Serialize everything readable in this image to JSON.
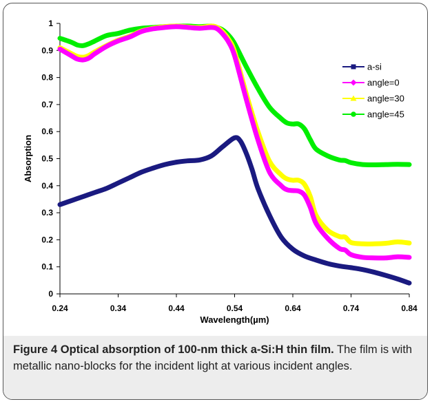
{
  "figure": {
    "caption_title": "Figure 4 Optical absorption of 100-nm thick a-Si:H thin film.",
    "caption_text": " The film is with metallic nano-blocks for the incident light at various incident angles."
  },
  "chart_data": {
    "type": "line",
    "title": "",
    "xlabel": "Wavelength(µm)",
    "ylabel": "Absorption",
    "xlim": [
      0.24,
      0.84
    ],
    "ylim": [
      0,
      1
    ],
    "xticks": [
      "0.24",
      "0.34",
      "0.44",
      "0.54",
      "0.64",
      "0.74",
      "0.84"
    ],
    "yticks": [
      "0",
      "0.1",
      "0.2",
      "0.3",
      "0.4",
      "0.5",
      "0.6",
      "0.7",
      "0.8",
      "0.9",
      "1"
    ],
    "grid": false,
    "legend": "top-right",
    "series": [
      {
        "name": "a-si",
        "color": "#1a1a80",
        "marker": "square",
        "x": [
          0.24,
          0.26,
          0.28,
          0.3,
          0.32,
          0.34,
          0.36,
          0.38,
          0.4,
          0.42,
          0.44,
          0.46,
          0.48,
          0.5,
          0.52,
          0.54,
          0.55,
          0.56,
          0.57,
          0.58,
          0.6,
          0.62,
          0.64,
          0.66,
          0.68,
          0.7,
          0.72,
          0.74,
          0.76,
          0.78,
          0.8,
          0.82,
          0.84
        ],
        "y": [
          0.33,
          0.345,
          0.36,
          0.375,
          0.39,
          0.41,
          0.43,
          0.45,
          0.465,
          0.478,
          0.487,
          0.492,
          0.495,
          0.51,
          0.545,
          0.577,
          0.565,
          0.52,
          0.46,
          0.39,
          0.29,
          0.21,
          0.165,
          0.14,
          0.125,
          0.112,
          0.103,
          0.097,
          0.09,
          0.08,
          0.068,
          0.055,
          0.04
        ]
      },
      {
        "name": "angle=0",
        "color": "#ff00ff",
        "marker": "diamond",
        "x": [
          0.24,
          0.26,
          0.27,
          0.28,
          0.29,
          0.3,
          0.32,
          0.34,
          0.36,
          0.38,
          0.4,
          0.42,
          0.44,
          0.46,
          0.48,
          0.5,
          0.51,
          0.52,
          0.53,
          0.54,
          0.56,
          0.58,
          0.6,
          0.62,
          0.63,
          0.64,
          0.65,
          0.66,
          0.67,
          0.68,
          0.7,
          0.72,
          0.73,
          0.74,
          0.76,
          0.78,
          0.8,
          0.82,
          0.84
        ],
        "y": [
          0.905,
          0.88,
          0.868,
          0.865,
          0.872,
          0.888,
          0.915,
          0.935,
          0.95,
          0.97,
          0.98,
          0.985,
          0.988,
          0.985,
          0.982,
          0.985,
          0.98,
          0.96,
          0.93,
          0.88,
          0.72,
          0.57,
          0.45,
          0.4,
          0.385,
          0.382,
          0.38,
          0.365,
          0.32,
          0.26,
          0.205,
          0.168,
          0.162,
          0.145,
          0.135,
          0.133,
          0.133,
          0.137,
          0.135
        ]
      },
      {
        "name": "angle=30",
        "color": "#ffff00",
        "marker": "triangle",
        "x": [
          0.24,
          0.26,
          0.27,
          0.28,
          0.29,
          0.3,
          0.32,
          0.34,
          0.36,
          0.38,
          0.4,
          0.42,
          0.44,
          0.46,
          0.48,
          0.5,
          0.51,
          0.52,
          0.53,
          0.54,
          0.56,
          0.58,
          0.6,
          0.62,
          0.63,
          0.64,
          0.65,
          0.66,
          0.67,
          0.68,
          0.7,
          0.72,
          0.73,
          0.74,
          0.76,
          0.78,
          0.8,
          0.82,
          0.84
        ],
        "y": [
          0.91,
          0.888,
          0.878,
          0.875,
          0.882,
          0.895,
          0.918,
          0.938,
          0.953,
          0.972,
          0.982,
          0.988,
          0.99,
          0.987,
          0.985,
          0.99,
          0.985,
          0.968,
          0.94,
          0.895,
          0.74,
          0.6,
          0.49,
          0.44,
          0.425,
          0.42,
          0.42,
          0.405,
          0.36,
          0.29,
          0.235,
          0.212,
          0.21,
          0.19,
          0.185,
          0.185,
          0.187,
          0.192,
          0.188
        ]
      },
      {
        "name": "angle=45",
        "color": "#00ee00",
        "marker": "circle",
        "x": [
          0.24,
          0.26,
          0.27,
          0.28,
          0.29,
          0.3,
          0.32,
          0.34,
          0.36,
          0.38,
          0.4,
          0.42,
          0.44,
          0.46,
          0.48,
          0.5,
          0.51,
          0.52,
          0.53,
          0.54,
          0.56,
          0.58,
          0.6,
          0.62,
          0.63,
          0.64,
          0.65,
          0.66,
          0.67,
          0.68,
          0.7,
          0.72,
          0.73,
          0.74,
          0.76,
          0.78,
          0.8,
          0.82,
          0.84
        ],
        "y": [
          0.945,
          0.93,
          0.92,
          0.918,
          0.925,
          0.935,
          0.955,
          0.963,
          0.975,
          0.982,
          0.985,
          0.988,
          0.99,
          0.99,
          0.988,
          0.99,
          0.985,
          0.975,
          0.955,
          0.925,
          0.84,
          0.76,
          0.69,
          0.648,
          0.632,
          0.628,
          0.628,
          0.61,
          0.57,
          0.535,
          0.51,
          0.495,
          0.493,
          0.485,
          0.478,
          0.477,
          0.478,
          0.479,
          0.478
        ]
      }
    ]
  }
}
